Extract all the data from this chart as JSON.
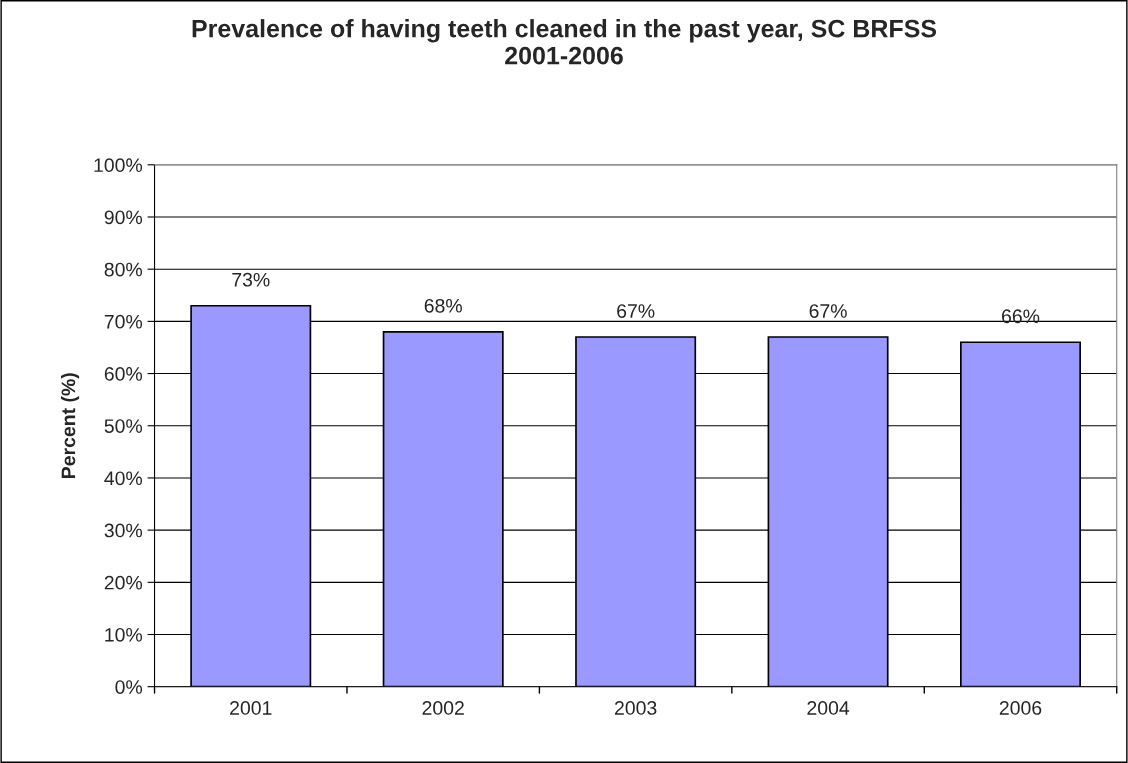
{
  "chart_data": {
    "type": "bar",
    "title": "Prevalence of having teeth cleaned in the past year, SC BRFSS\n2001-2006",
    "ylabel": "Percent (%)",
    "categories": [
      "2001",
      "2002",
      "2003",
      "2004",
      "2006"
    ],
    "values": [
      73,
      68,
      67,
      67,
      66
    ],
    "color": "#9999ff",
    "value_labels": [
      "73%",
      "68%",
      "67%",
      "67%",
      "66%"
    ],
    "ylim": [
      0,
      100
    ],
    "yticks": [
      {
        "value": 0,
        "label": "0%"
      },
      {
        "value": 10,
        "label": "10%"
      },
      {
        "value": 20,
        "label": "20%"
      },
      {
        "value": 30,
        "label": "30%"
      },
      {
        "value": 40,
        "label": "40%"
      },
      {
        "value": 50,
        "label": "50%"
      },
      {
        "value": 60,
        "label": "60%"
      },
      {
        "value": 70,
        "label": "70%"
      },
      {
        "value": 80,
        "label": "80%"
      },
      {
        "value": 90,
        "label": "90%"
      },
      {
        "value": 100,
        "label": "100%"
      }
    ],
    "grid": "y"
  }
}
